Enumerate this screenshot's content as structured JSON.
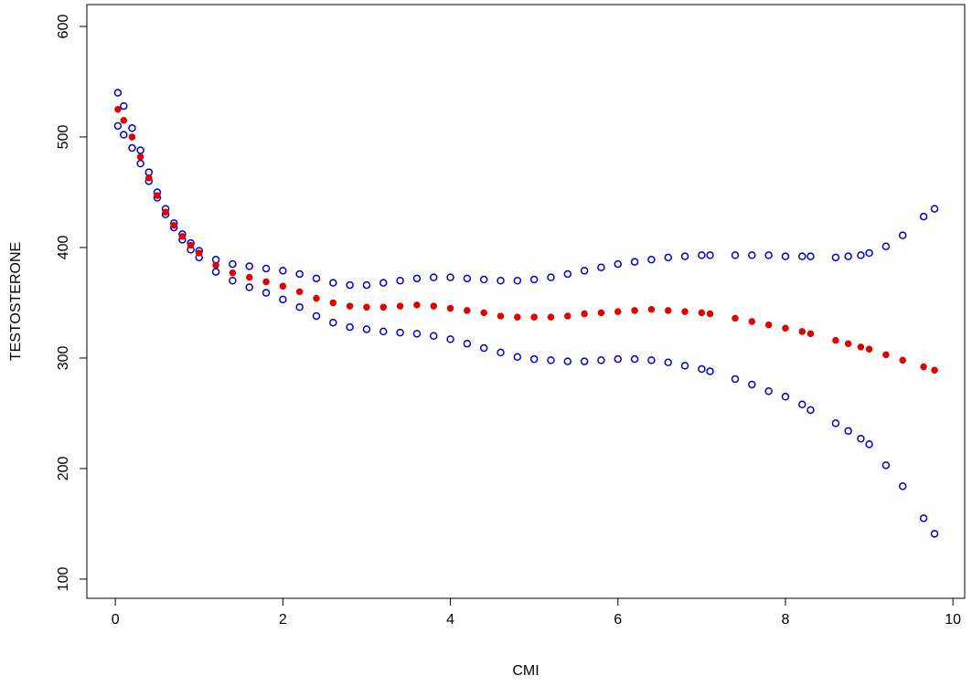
{
  "chart_data": {
    "type": "scatter",
    "xlabel": "CMI",
    "ylabel": "TESTOSTERONE",
    "x": [
      0.03,
      0.1,
      0.2,
      0.3,
      0.4,
      0.5,
      0.6,
      0.7,
      0.8,
      0.9,
      1.0,
      1.2,
      1.4,
      1.6,
      1.8,
      2.0,
      2.2,
      2.4,
      2.6,
      2.8,
      3.0,
      3.2,
      3.4,
      3.6,
      3.8,
      4.0,
      4.2,
      4.4,
      4.6,
      4.8,
      5.0,
      5.2,
      5.4,
      5.6,
      5.8,
      6.0,
      6.2,
      6.4,
      6.6,
      6.8,
      7.0,
      7.1,
      7.4,
      7.6,
      7.8,
      8.0,
      8.2,
      8.3,
      8.6,
      8.75,
      8.9,
      9.0,
      9.2,
      9.4,
      9.65,
      9.78
    ],
    "series": [
      {
        "color": "#0000cc",
        "marker": "open",
        "values": [
          540,
          528,
          508,
          488,
          468,
          450,
          435,
          422,
          412,
          404,
          397,
          389,
          385,
          383,
          381,
          379,
          376,
          372,
          368,
          366,
          366,
          368,
          370,
          372,
          373,
          373,
          372,
          371,
          370,
          370,
          371,
          373,
          376,
          379,
          382,
          385,
          387,
          389,
          391,
          392,
          393,
          393,
          393,
          393,
          393,
          392,
          392,
          392,
          391,
          392,
          393,
          395,
          401,
          411,
          428,
          435
        ]
      },
      {
        "color": "#0000cc",
        "marker": "open",
        "values": [
          510,
          502,
          490,
          476,
          460,
          445,
          430,
          418,
          407,
          398,
          391,
          378,
          370,
          364,
          359,
          353,
          346,
          338,
          332,
          328,
          326,
          324,
          323,
          322,
          320,
          317,
          313,
          309,
          305,
          301,
          299,
          298,
          297,
          297,
          298,
          299,
          299,
          298,
          296,
          293,
          290,
          288,
          281,
          276,
          270,
          265,
          258,
          253,
          241,
          234,
          227,
          222,
          203,
          184,
          155,
          141
        ]
      },
      {
        "color": "#e00000",
        "marker": "filled",
        "values": [
          525,
          515,
          500,
          482,
          463,
          447,
          432,
          420,
          410,
          402,
          395,
          384,
          377,
          373,
          369,
          365,
          360,
          354,
          350,
          347,
          346,
          346,
          347,
          348,
          347,
          345,
          343,
          341,
          338,
          337,
          337,
          337,
          338,
          340,
          341,
          342,
          343,
          344,
          343,
          342,
          341,
          340,
          336,
          333,
          330,
          327,
          324,
          322,
          316,
          313,
          310,
          308,
          303,
          298,
          292,
          289
        ]
      }
    ],
    "xlim": [
      -0.34,
      10.14
    ],
    "xticks": [
      0,
      2,
      4,
      6,
      8,
      10
    ],
    "ylim": [
      82.6,
      619.8
    ],
    "yticks": [
      100,
      200,
      300,
      400,
      500,
      600
    ],
    "grid": false
  }
}
